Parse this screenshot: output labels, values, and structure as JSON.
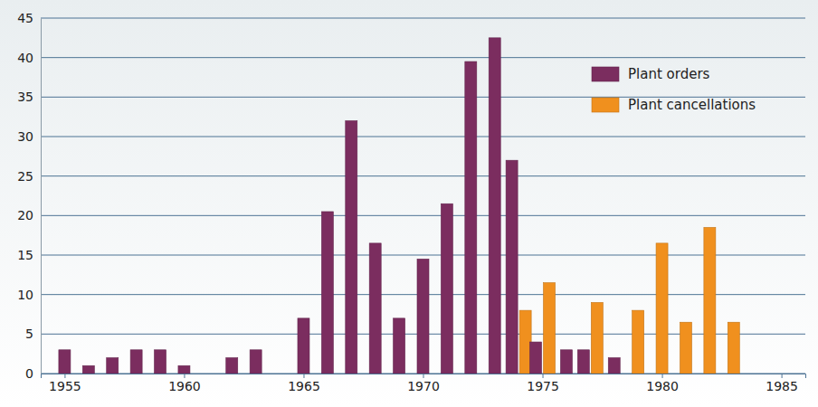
{
  "chart_data": {
    "type": "bar",
    "x": [
      1955,
      1956,
      1957,
      1958,
      1959,
      1960,
      1961,
      1962,
      1963,
      1964,
      1965,
      1966,
      1967,
      1968,
      1969,
      1970,
      1971,
      1972,
      1973,
      1974,
      1975,
      1976,
      1977,
      1978,
      1979,
      1980,
      1981,
      1982,
      1983
    ],
    "series": [
      {
        "name": "Plant orders",
        "color": "#7b2d5f",
        "values": [
          3,
          1,
          2,
          3,
          3,
          1,
          null,
          2,
          3,
          null,
          7,
          20.5,
          32,
          16.5,
          7,
          14.5,
          21.5,
          39.5,
          42.5,
          27,
          4,
          3,
          3,
          2,
          null,
          null,
          null,
          null,
          null
        ]
      },
      {
        "name": "Plant cancellations",
        "color": "#f0901e",
        "values": [
          null,
          null,
          null,
          null,
          null,
          null,
          null,
          null,
          null,
          null,
          null,
          null,
          null,
          null,
          null,
          null,
          null,
          null,
          null,
          8,
          11.5,
          null,
          9,
          null,
          8,
          16.5,
          6.5,
          18.5,
          6.5
        ]
      }
    ],
    "xlim": [
      1954,
      1986
    ],
    "xticks": [
      1955,
      1960,
      1965,
      1970,
      1975,
      1980,
      1985
    ],
    "ylim": [
      0,
      45
    ],
    "yticks": [
      0,
      5,
      10,
      15,
      20,
      25,
      30,
      35,
      40,
      45
    ],
    "grid": true,
    "legend": "upper right"
  }
}
